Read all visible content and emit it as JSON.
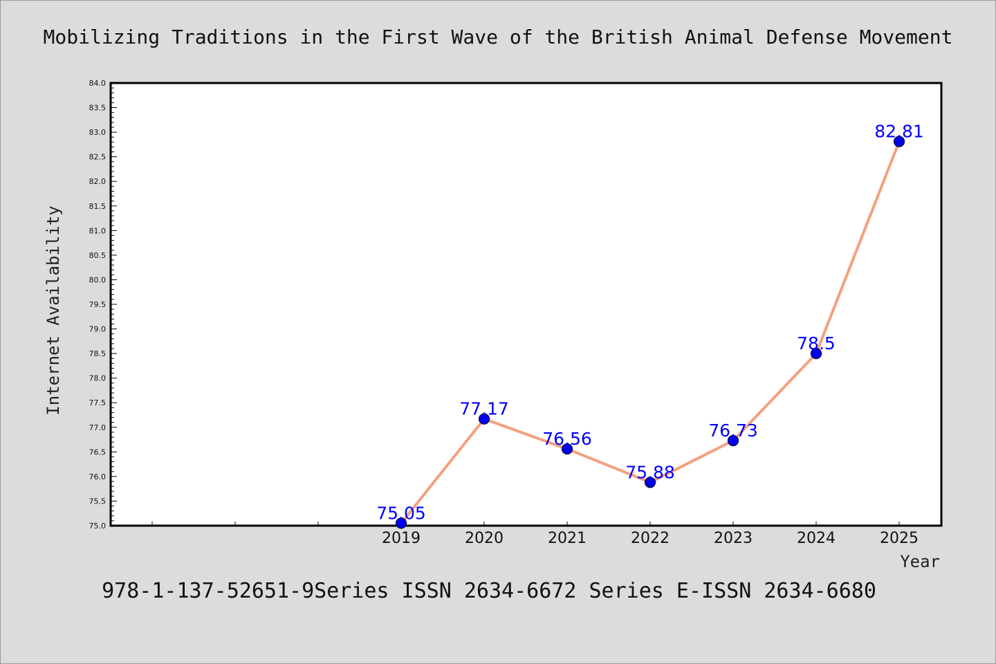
{
  "chart_data": {
    "type": "line",
    "title": "Mobilizing Traditions in the First Wave of the British Animal Defense Movement",
    "xlabel": "Year",
    "ylabel": "Internet Availability",
    "caption": "978-1-137-52651-9Series ISSN 2634-6672 Series E-ISSN 2634-6680",
    "x": [
      "2019",
      "2020",
      "2021",
      "2022",
      "2023",
      "2024",
      "2025"
    ],
    "series": [
      {
        "values": [
          75.05,
          77.17,
          76.56,
          75.88,
          76.73,
          78.5,
          82.81
        ]
      }
    ],
    "data_labels": [
      "75.05",
      "77.17",
      "76.56",
      "75.88",
      "76.73",
      "78.5",
      "82.81"
    ],
    "ylim": [
      75.0,
      84.0
    ],
    "yticks": [
      "75.0",
      "75.5",
      "76.0",
      "76.5",
      "77.0",
      "77.5",
      "78.0",
      "78.5",
      "79.0",
      "79.5",
      "80.0",
      "80.5",
      "81.0",
      "81.5",
      "82.0",
      "82.5",
      "83.0",
      "83.5",
      "84.0"
    ],
    "grid": false,
    "legend": "none",
    "colors": {
      "line": "#f4a07e",
      "marker_fill": "#0000ee",
      "marker_edge": "#000033",
      "data_label": "#0000ff",
      "background": "#dcdcdc",
      "plot_background": "#ffffff"
    }
  }
}
